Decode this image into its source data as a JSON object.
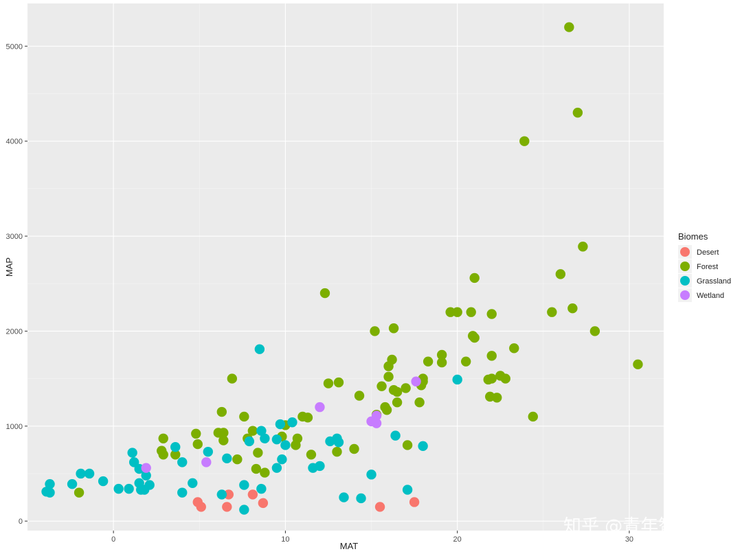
{
  "chart_data": {
    "type": "scatter",
    "xlabel": "MAT",
    "ylabel": "MAP",
    "xlim": [
      -5,
      32
    ],
    "ylim": [
      -100,
      5450
    ],
    "xticks": [
      0,
      10,
      20,
      30
    ],
    "yticks": [
      0,
      1000,
      2000,
      3000,
      4000,
      5000
    ],
    "grid": true,
    "legend": {
      "title": "Biomes",
      "placement": "right"
    },
    "series": [
      {
        "name": "Desert",
        "color": "#F8766D",
        "points": [
          [
            4.9,
            200
          ],
          [
            5.1,
            150
          ],
          [
            6.6,
            150
          ],
          [
            6.7,
            280
          ],
          [
            8.1,
            280
          ],
          [
            8.7,
            190
          ],
          [
            15.5,
            150
          ],
          [
            17.5,
            200
          ]
        ]
      },
      {
        "name": "Forest",
        "color": "#7CAE00",
        "points": [
          [
            -2.0,
            300
          ],
          [
            2.8,
            740
          ],
          [
            2.9,
            700
          ],
          [
            2.9,
            870
          ],
          [
            3.6,
            700
          ],
          [
            4.8,
            920
          ],
          [
            4.9,
            810
          ],
          [
            6.1,
            930
          ],
          [
            6.3,
            1150
          ],
          [
            6.4,
            930
          ],
          [
            6.4,
            850
          ],
          [
            6.9,
            1500
          ],
          [
            7.2,
            650
          ],
          [
            7.6,
            1100
          ],
          [
            7.8,
            870
          ],
          [
            8.1,
            950
          ],
          [
            8.3,
            550
          ],
          [
            8.4,
            720
          ],
          [
            8.8,
            510
          ],
          [
            9.8,
            890
          ],
          [
            10.0,
            1010
          ],
          [
            10.6,
            800
          ],
          [
            10.7,
            870
          ],
          [
            11.0,
            1100
          ],
          [
            11.3,
            1090
          ],
          [
            11.5,
            700
          ],
          [
            12.3,
            2400
          ],
          [
            12.5,
            1450
          ],
          [
            13.0,
            730
          ],
          [
            13.1,
            1460
          ],
          [
            14.0,
            760
          ],
          [
            14.3,
            1320
          ],
          [
            15.2,
            2000
          ],
          [
            15.3,
            1120
          ],
          [
            15.6,
            1420
          ],
          [
            15.8,
            1200
          ],
          [
            15.9,
            1170
          ],
          [
            16.0,
            1520
          ],
          [
            16.0,
            1630
          ],
          [
            16.2,
            1700
          ],
          [
            16.3,
            2030
          ],
          [
            16.3,
            1380
          ],
          [
            16.5,
            1360
          ],
          [
            16.5,
            1250
          ],
          [
            17.0,
            1400
          ],
          [
            17.1,
            800
          ],
          [
            17.8,
            1250
          ],
          [
            17.9,
            1430
          ],
          [
            18.0,
            1500
          ],
          [
            18.0,
            1470
          ],
          [
            18.3,
            1680
          ],
          [
            19.1,
            1750
          ],
          [
            19.1,
            1670
          ],
          [
            19.6,
            2200
          ],
          [
            20.0,
            2200
          ],
          [
            20.5,
            1680
          ],
          [
            20.8,
            2200
          ],
          [
            20.9,
            1950
          ],
          [
            21.0,
            1930
          ],
          [
            21.0,
            2560
          ],
          [
            21.8,
            1490
          ],
          [
            21.9,
            1310
          ],
          [
            22.0,
            1500
          ],
          [
            22.0,
            1740
          ],
          [
            22.0,
            2180
          ],
          [
            22.3,
            1300
          ],
          [
            22.5,
            1530
          ],
          [
            22.8,
            1500
          ],
          [
            23.3,
            1820
          ],
          [
            23.9,
            4000
          ],
          [
            24.4,
            1100
          ],
          [
            25.5,
            2200
          ],
          [
            26.0,
            2600
          ],
          [
            26.5,
            5200
          ],
          [
            26.7,
            2240
          ],
          [
            27.0,
            4300
          ],
          [
            27.3,
            2890
          ],
          [
            28.0,
            2000
          ],
          [
            30.5,
            1650
          ]
        ]
      },
      {
        "name": "Grassland",
        "color": "#00BFC4",
        "points": [
          [
            -3.9,
            310
          ],
          [
            -3.7,
            300
          ],
          [
            -3.7,
            390
          ],
          [
            -2.4,
            390
          ],
          [
            -1.9,
            500
          ],
          [
            -1.4,
            500
          ],
          [
            -0.6,
            420
          ],
          [
            0.3,
            340
          ],
          [
            0.9,
            340
          ],
          [
            1.1,
            720
          ],
          [
            1.2,
            620
          ],
          [
            1.5,
            400
          ],
          [
            1.5,
            550
          ],
          [
            1.6,
            330
          ],
          [
            1.8,
            330
          ],
          [
            1.9,
            480
          ],
          [
            2.1,
            380
          ],
          [
            3.6,
            780
          ],
          [
            4.0,
            300
          ],
          [
            4.0,
            620
          ],
          [
            4.6,
            400
          ],
          [
            5.5,
            730
          ],
          [
            6.3,
            280
          ],
          [
            6.6,
            660
          ],
          [
            7.6,
            380
          ],
          [
            7.6,
            120
          ],
          [
            7.9,
            840
          ],
          [
            8.5,
            1810
          ],
          [
            8.6,
            950
          ],
          [
            8.6,
            340
          ],
          [
            8.8,
            870
          ],
          [
            9.5,
            560
          ],
          [
            9.5,
            860
          ],
          [
            9.7,
            1020
          ],
          [
            9.8,
            650
          ],
          [
            10.0,
            800
          ],
          [
            10.4,
            1040
          ],
          [
            11.6,
            560
          ],
          [
            12.0,
            580
          ],
          [
            12.6,
            840
          ],
          [
            13.0,
            870
          ],
          [
            13.1,
            830
          ],
          [
            13.4,
            250
          ],
          [
            14.4,
            240
          ],
          [
            15.0,
            490
          ],
          [
            16.4,
            900
          ],
          [
            17.1,
            330
          ],
          [
            18.0,
            790
          ],
          [
            20.0,
            1490
          ]
        ]
      },
      {
        "name": "Wetland",
        "color": "#C77CFF",
        "points": [
          [
            1.9,
            560
          ],
          [
            5.4,
            620
          ],
          [
            12.0,
            1200
          ],
          [
            15.0,
            1050
          ],
          [
            15.3,
            1110
          ],
          [
            15.3,
            1030
          ],
          [
            17.6,
            1470
          ]
        ]
      }
    ]
  },
  "watermark": {
    "text": "知乎 @青年智囊"
  }
}
